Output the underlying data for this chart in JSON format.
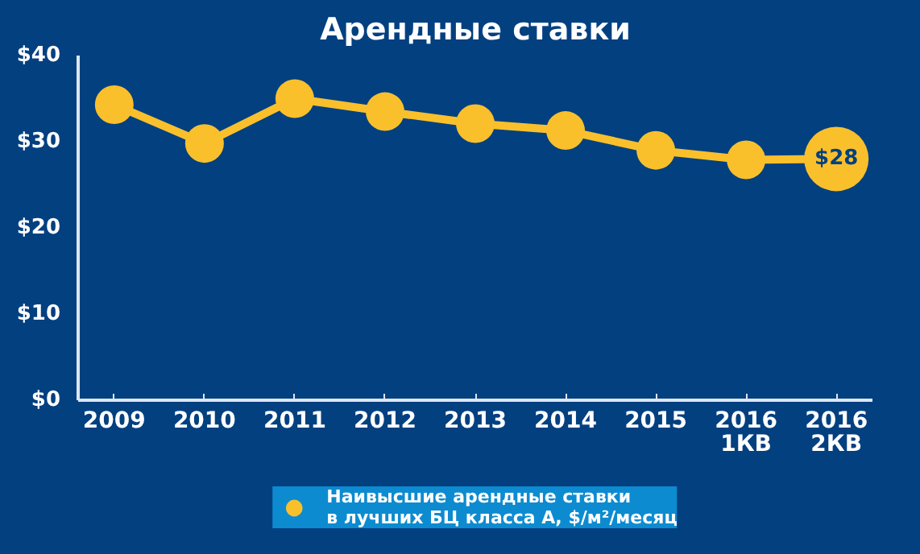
{
  "chart_data": {
    "type": "line",
    "title": "Арендные ставки",
    "categories": [
      "2009",
      "2010",
      "2011",
      "2012",
      "2013",
      "2014",
      "2015",
      "2016\n1КВ",
      "2016\n2КВ"
    ],
    "series": [
      {
        "name": "Наивысшие арендные ставки\nв лучших БЦ класса А, $/м²/месяц",
        "color": "#f9c02c",
        "values": [
          34.3,
          29.8,
          35,
          33.5,
          32.1,
          31.3,
          29,
          27.9,
          28
        ],
        "value_labels": [
          null,
          null,
          null,
          null,
          null,
          null,
          null,
          null,
          "$28"
        ]
      }
    ],
    "ylim": [
      0,
      40
    ],
    "yticks": [
      {
        "value": 0,
        "label": "$0"
      },
      {
        "value": 10,
        "label": "$10"
      },
      {
        "value": 20,
        "label": "$20"
      },
      {
        "value": 30,
        "label": "$30"
      },
      {
        "value": 40,
        "label": "$40"
      }
    ],
    "grid": false,
    "legend": "bottom",
    "marker": "circle",
    "line_style": "solid"
  }
}
